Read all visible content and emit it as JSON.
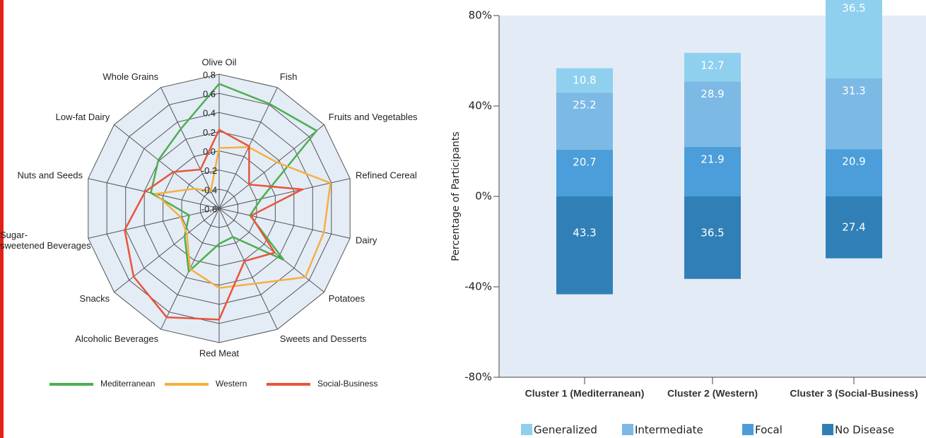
{
  "chart_data": [
    {
      "type": "radar",
      "categories": [
        "Olive Oil",
        "Fish",
        "Fruits and Vegetables",
        "Refined Cereal",
        "Dairy",
        "Potatoes",
        "Sweets and Desserts",
        "Red Meat",
        "Alcoholic Beverages",
        "Snacks",
        "Sugar-sweetened Beverages",
        "Nuts and Seeds",
        "Low-fat Dairy",
        "Whole Grains"
      ],
      "rlim": [
        -0.6,
        0.8
      ],
      "rticks": [
        0.8,
        0.6,
        0.4,
        0.2,
        {
          "value": 0,
          "label": "0.0"
        },
        -0.2,
        -0.4,
        -0.6
      ],
      "series": [
        {
          "name": "Mediterranean",
          "color": "#4caf50",
          "values": [
            0.7,
            0.61,
            0.7,
            -0.15,
            -0.27,
            0.26,
            -0.27,
            -0.23,
            0.13,
            -0.14,
            -0.28,
            0.13,
            0.21,
            0.32
          ]
        },
        {
          "name": "Western",
          "color": "#f5b041",
          "values": [
            0.03,
            0.11,
            0.17,
            0.59,
            0.52,
            0.55,
            0.27,
            0.23,
            0.1,
            -0.17,
            -0.19,
            0.08,
            -0.27,
            -0.4
          ]
        },
        {
          "name": "Social-Business",
          "color": "#e8553a",
          "values": [
            0.22,
            0.12,
            -0.2,
            0.29,
            -0.26,
            0.14,
            0.01,
            0.56,
            0.66,
            0.54,
            0.41,
            0.19,
            0.01,
            -0.15
          ]
        }
      ]
    },
    {
      "type": "bar",
      "stacked": true,
      "y_label": "Percentage of Participants",
      "categories": [
        "Cluster 1 (Mediterranean)",
        "Cluster 2 (Western)",
        "Cluster 3 (Social-Business)"
      ],
      "ylim": [
        -80,
        80
      ],
      "yticks": [
        {
          "value": 80,
          "label": "80%"
        },
        {
          "value": 40,
          "label": "40%"
        },
        {
          "value": 0,
          "label": "0%"
        },
        {
          "value": -40,
          "label": "-40%"
        },
        {
          "value": -80,
          "label": "-80%"
        }
      ],
      "series": [
        {
          "name": "Generalized",
          "color": "#8fd0ef",
          "values": [
            10.8,
            12.7,
            36.5
          ]
        },
        {
          "name": "Intermediate",
          "color": "#7cb9e5",
          "values": [
            25.2,
            28.9,
            31.3
          ]
        },
        {
          "name": "Focal",
          "color": "#4b9ed9",
          "values": [
            20.7,
            21.9,
            20.9
          ]
        },
        {
          "name": "No Disease",
          "color": "#3080b7",
          "values": [
            -43.3,
            -36.5,
            -27.4
          ],
          "value_labels": [
            "43.3",
            "36.5",
            "27.4"
          ]
        }
      ]
    }
  ]
}
